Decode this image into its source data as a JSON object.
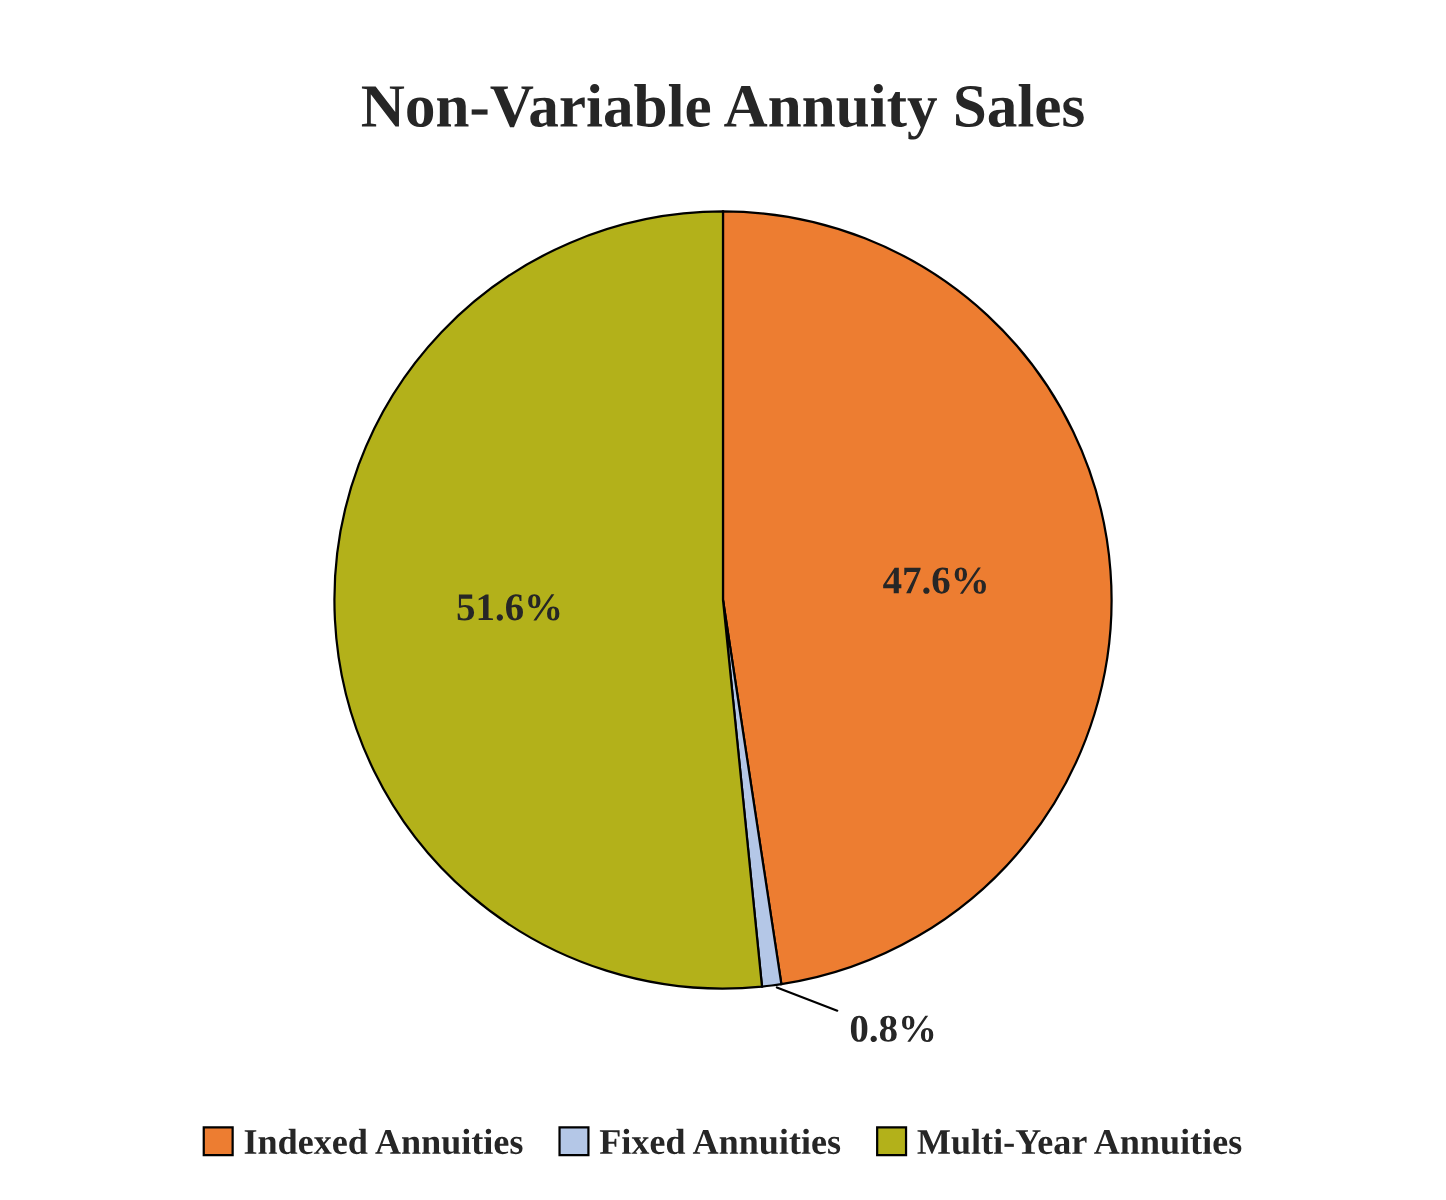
{
  "chart_data": {
    "type": "pie",
    "title": "Non-Variable Annuity Sales",
    "categories": [
      "Indexed Annuities",
      "Fixed Annuities",
      "Multi-Year Annuities"
    ],
    "values": [
      47.6,
      0.8,
      51.6
    ],
    "colors": [
      "#ed7d31",
      "#b4c7e7",
      "#b3b11a"
    ],
    "value_labels": [
      "47.6%",
      "0.8%",
      "51.6%"
    ],
    "legend": "bottom"
  }
}
